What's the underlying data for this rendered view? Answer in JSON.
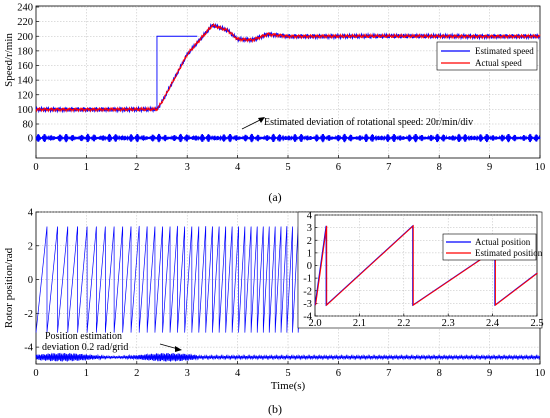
{
  "chart_data": [
    {
      "panel": "a",
      "type": "line",
      "caption": "(a)",
      "ylabel": "Speed/r/min",
      "xlabel": "",
      "xlim": [
        0,
        10
      ],
      "ylim": [
        -20,
        240
      ],
      "xticks": [
        "0",
        "1",
        "2",
        "3",
        "4",
        "5",
        "6",
        "7",
        "8",
        "9",
        "10"
      ],
      "yticks": [
        "0",
        "80",
        "100",
        "120",
        "140",
        "160",
        "180",
        "200",
        "220",
        "240"
      ],
      "grid": true,
      "legend": {
        "position": "right",
        "entries": [
          "Estimated speed",
          "Actual speed"
        ]
      },
      "annotation": "Estimated deviation of rotational speed: 20r/min/div",
      "reference_step": {
        "x": [
          0,
          2.4,
          2.4,
          3.2
        ],
        "y": [
          100,
          100,
          200,
          200
        ]
      },
      "series": [
        {
          "name": "Estimated speed",
          "color": "#0000ff",
          "x": [
            0,
            2.4,
            2.5,
            3.0,
            3.5,
            3.8,
            4.0,
            4.3,
            4.6,
            5.0,
            10.0
          ],
          "y": [
            100,
            100,
            110,
            175,
            215,
            208,
            196,
            195,
            203,
            200,
            200
          ]
        },
        {
          "name": "Actual speed",
          "color": "#ff0000",
          "x": [
            0,
            2.4,
            2.5,
            3.0,
            3.5,
            3.8,
            4.0,
            4.3,
            4.6,
            5.0,
            10.0
          ],
          "y": [
            100,
            100,
            110,
            175,
            215,
            208,
            196,
            195,
            203,
            200,
            200
          ]
        },
        {
          "name": "Speed estimation deviation",
          "color": "#0000ff",
          "x": [
            0,
            10
          ],
          "y": [
            0,
            0
          ]
        }
      ]
    },
    {
      "panel": "b",
      "type": "line",
      "caption": "(b)",
      "ylabel": "Rotor position/rad",
      "xlabel": "Time(s)",
      "xlim": [
        0,
        10
      ],
      "ylim": [
        -5,
        4
      ],
      "xticks": [
        "0",
        "1",
        "2",
        "3",
        "4",
        "5",
        "6",
        "7",
        "8",
        "9",
        "10"
      ],
      "yticks": [
        "-4",
        "-2",
        "0",
        "2",
        "4"
      ],
      "grid": true,
      "annotation_line1": "Position estimation",
      "annotation_line2": "deviation 0.2 rad/grid",
      "series": [
        {
          "name": "Rotor position",
          "color": "#0000ff",
          "range": [
            -3.14,
            3.14
          ],
          "frequency_hz": [
            4.5,
            9.0
          ]
        },
        {
          "name": "Position estimation deviation",
          "color": "#0000ff",
          "y_offset": -4.6
        }
      ],
      "inset": {
        "xlim": [
          2.0,
          2.5
        ],
        "ylim": [
          -4,
          4
        ],
        "xticks": [
          "2.0",
          "2.1",
          "2.2",
          "2.3",
          "2.4",
          "2.5"
        ],
        "yticks": [
          "-4",
          "-3",
          "-2",
          "-1",
          "0",
          "1",
          "2",
          "3",
          "4"
        ],
        "legend": {
          "position": "top-right",
          "entries": [
            "Actual position",
            "Estimated position"
          ]
        },
        "series": [
          {
            "name": "Actual position",
            "color": "#0000ff",
            "x": [
              2.0,
              2.025,
              2.025,
              2.22,
              2.22,
              2.405,
              2.405,
              2.5
            ],
            "y": [
              -3.14,
              3.14,
              -3.14,
              3.14,
              -3.14,
              1.25,
              -3.14,
              -0.6
            ]
          },
          {
            "name": "Estimated position",
            "color": "#ff0000",
            "x": [
              2.0,
              2.025,
              2.025,
              2.22,
              2.22,
              2.405,
              2.405,
              2.5
            ],
            "y": [
              -3.14,
              3.14,
              -3.14,
              3.14,
              -3.14,
              1.25,
              -3.14,
              -0.6
            ]
          }
        ]
      }
    }
  ]
}
